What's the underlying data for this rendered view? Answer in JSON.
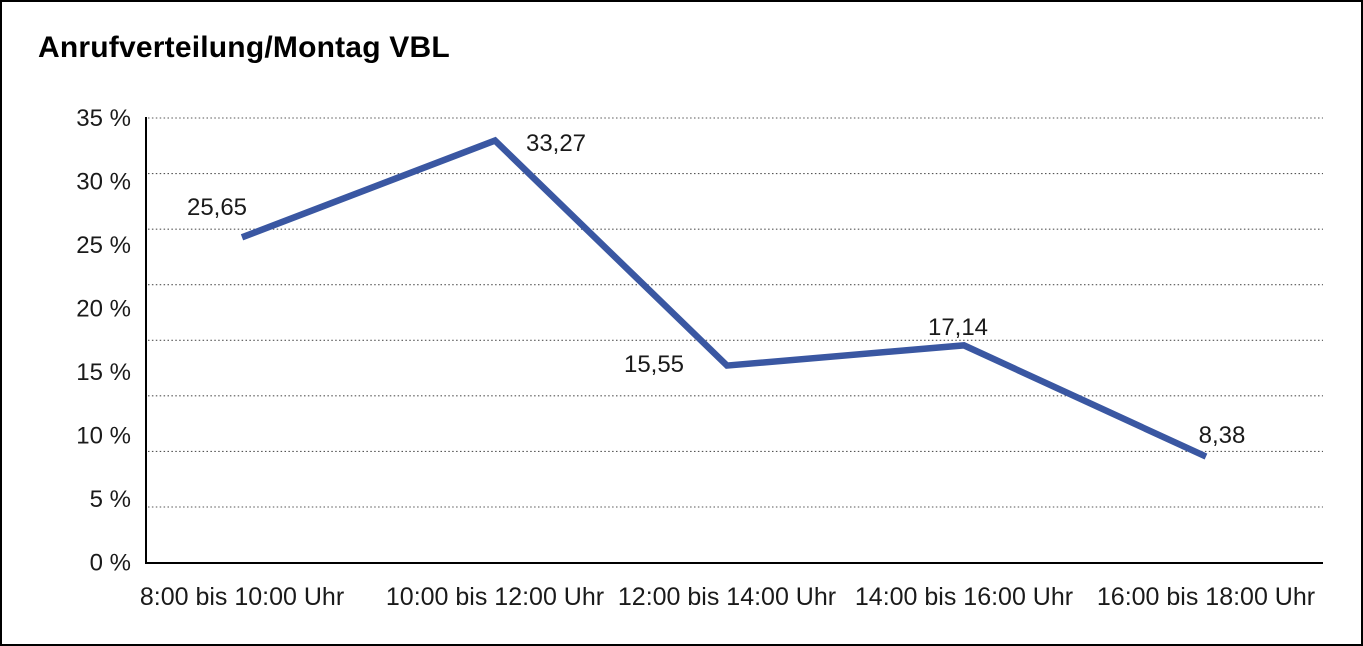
{
  "title": "Anrufverteilung/Montag VBL",
  "chart_data": {
    "type": "line",
    "title": "Anrufverteilung/Montag VBL",
    "categories": [
      "8:00 bis 10:00 Uhr",
      "10:00 bis 12:00 Uhr",
      "12:00 bis 14:00 Uhr",
      "14:00 bis 16:00 Uhr",
      "16:00 bis 18:00 Uhr"
    ],
    "values": [
      25.65,
      33.27,
      15.55,
      17.14,
      8.38
    ],
    "point_labels": [
      "25,65",
      "33,27",
      "15,55",
      "17,14",
      "8,38"
    ],
    "y_axis": {
      "ticks": [
        35,
        30,
        25,
        20,
        15,
        10,
        5,
        0
      ],
      "tick_labels": [
        "35 %",
        "30 %",
        "25 %",
        "20 %",
        "15 %",
        "10 %",
        "5 %",
        "0 %"
      ],
      "range": [
        0,
        35
      ],
      "unit": "%"
    },
    "grid": {
      "style": "horizontal-dotted",
      "dotted_line_count": 8,
      "color": "#555555"
    },
    "legend": "none",
    "line_color": "#3A57A2",
    "axis_color": "#000000",
    "text_color": "#1a1a1a",
    "background": "#ffffff"
  }
}
